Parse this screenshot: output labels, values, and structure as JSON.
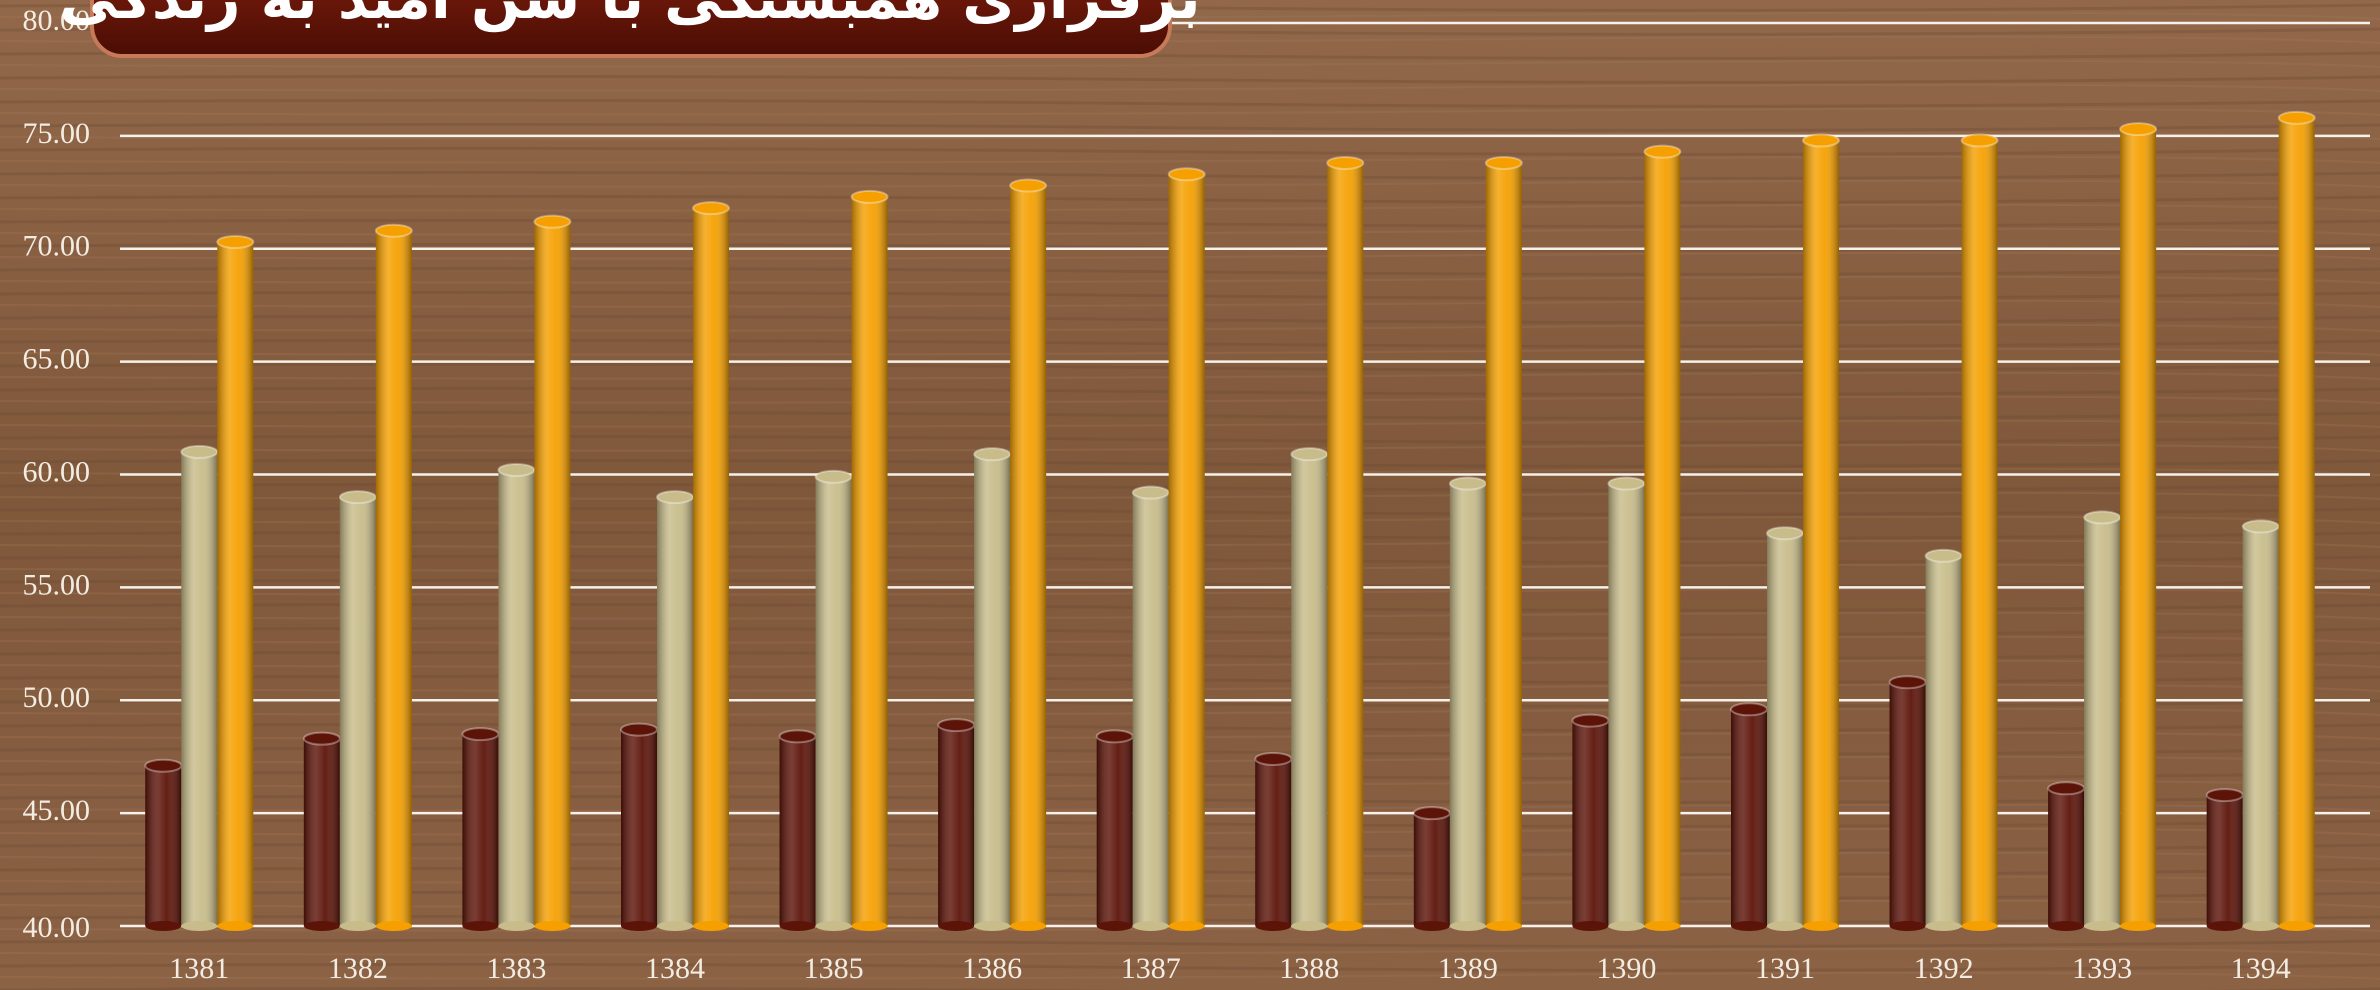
{
  "chart_data": {
    "type": "bar",
    "title": "برقراری همبستگی با سن امید به زندگی",
    "categories": [
      "1381",
      "1382",
      "1383",
      "1384",
      "1385",
      "1386",
      "1387",
      "1388",
      "1389",
      "1390",
      "1391",
      "1392",
      "1393",
      "1394"
    ],
    "series": [
      {
        "color": "#5c1308",
        "values": [
          47.1,
          48.3,
          48.5,
          48.7,
          48.4,
          48.9,
          48.4,
          47.4,
          45.0,
          49.1,
          49.6,
          50.8,
          46.1,
          45.8
        ]
      },
      {
        "color": "#c8bc8a",
        "values": [
          61.0,
          59.0,
          60.2,
          59.0,
          59.9,
          60.9,
          59.2,
          60.9,
          59.6,
          59.6,
          57.4,
          56.4,
          58.1,
          57.7
        ]
      },
      {
        "color": "#f5a000",
        "values": [
          70.3,
          70.8,
          71.2,
          71.8,
          72.3,
          72.8,
          73.3,
          73.8,
          73.8,
          74.3,
          74.8,
          74.8,
          75.3,
          75.8
        ]
      }
    ],
    "ylim": [
      40,
      80
    ],
    "yticks": [
      {
        "value": 40,
        "label": "40.00"
      },
      {
        "value": 45,
        "label": "45.00"
      },
      {
        "value": 50,
        "label": "50.00"
      },
      {
        "value": 55,
        "label": "55.00"
      },
      {
        "value": 60,
        "label": "60.00"
      },
      {
        "value": 65,
        "label": "65.00"
      },
      {
        "value": 70,
        "label": "70.00"
      },
      {
        "value": 75,
        "label": "75.00"
      },
      {
        "value": 80,
        "label": "80.00"
      }
    ],
    "grid": true
  }
}
